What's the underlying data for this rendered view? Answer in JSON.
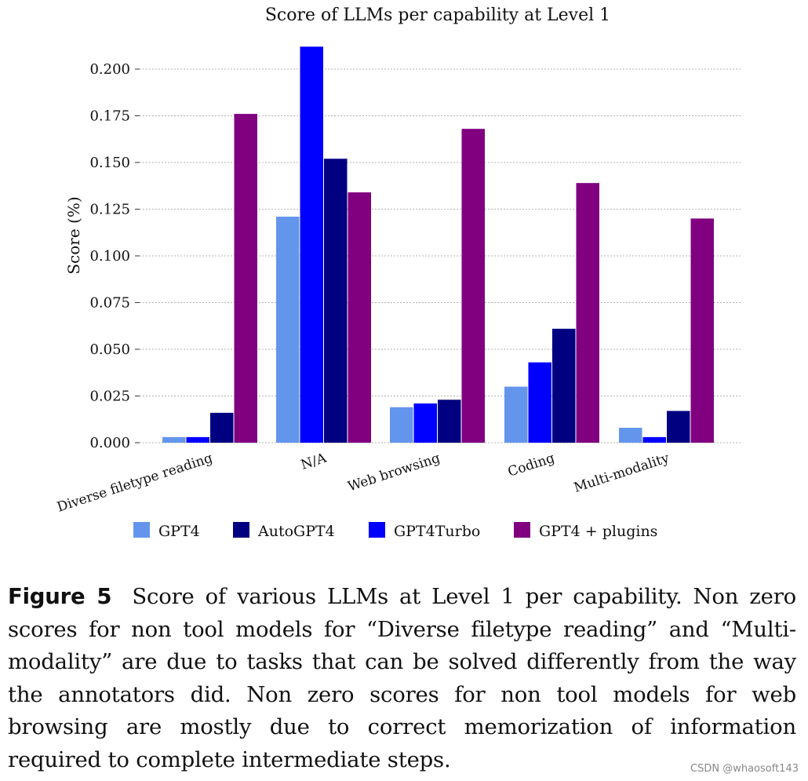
{
  "chart_data": {
    "type": "bar",
    "title": "Score of LLMs per capability at Level 1",
    "xlabel": "",
    "ylabel": "Score (%)",
    "ylim": [
      0,
      0.22
    ],
    "yticks": [
      "0.000",
      "0.025",
      "0.050",
      "0.075",
      "0.100",
      "0.125",
      "0.150",
      "0.175",
      "0.200"
    ],
    "grid": true,
    "legend_position": "bottom",
    "categories": [
      "Diverse filetype reading",
      "N/A",
      "Web browsing",
      "Coding",
      "Multi-modality"
    ],
    "series": [
      {
        "name": "GPT4",
        "color": "#6495ED",
        "values": [
          0.003,
          0.121,
          0.019,
          0.03,
          0.008
        ]
      },
      {
        "name": "GPT4Turbo",
        "color": "#0000FF",
        "values": [
          0.003,
          0.212,
          0.021,
          0.043,
          0.003
        ]
      },
      {
        "name": "AutoGPT4",
        "color": "#000080",
        "values": [
          0.016,
          0.152,
          0.023,
          0.061,
          0.017
        ]
      },
      {
        "name": "GPT4 + plugins",
        "color": "#800080",
        "values": [
          0.176,
          0.134,
          0.168,
          0.139,
          0.12
        ]
      }
    ],
    "legend_order": [
      "GPT4",
      "AutoGPT4",
      "GPT4Turbo",
      "GPT4 + plugins"
    ]
  },
  "caption": {
    "label": "Figure 5",
    "text": "Score of various LLMs at Level 1 per capability. Non zero scores for non tool models for “Diverse filetype reading” and “Multi-modality” are due to tasks that can be solved differently from the way the annotators did. Non zero scores for non tool models for web browsing are mostly due to correct memorization of information required to complete intermediate steps."
  },
  "watermark": "CSDN @whaosoft143"
}
